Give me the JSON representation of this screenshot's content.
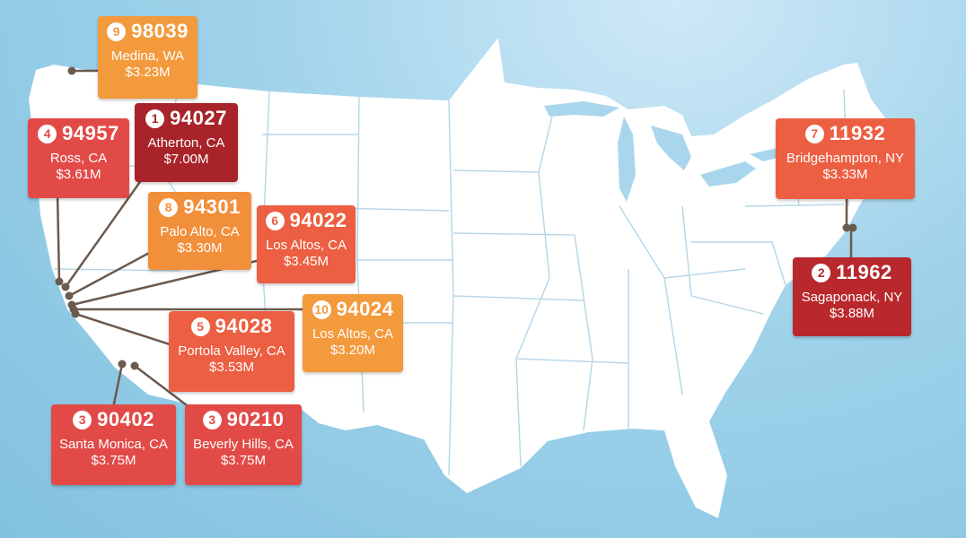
{
  "colors": {
    "water": "#8fcbe6",
    "land": "#ffffff",
    "borders": "#b5d6e8",
    "leader": "#6b5a4e",
    "rank1": "#a8242a",
    "red": "#e24a47",
    "orange": "#f28f3b"
  },
  "labels": [
    {
      "id": "medina",
      "rank": "9",
      "zip": "98039",
      "city": "Medina, WA",
      "price": "$3.23M"
    },
    {
      "id": "atherton",
      "rank": "1",
      "zip": "94027",
      "city": "Atherton, CA",
      "price": "$7.00M"
    },
    {
      "id": "ross",
      "rank": "4",
      "zip": "94957",
      "city": "Ross, CA",
      "price": "$3.61M"
    },
    {
      "id": "paloalto",
      "rank": "8",
      "zip": "94301",
      "city": "Palo Alto, CA",
      "price": "$3.30M"
    },
    {
      "id": "losaltos22",
      "rank": "6",
      "zip": "94022",
      "city": "Los Altos, CA",
      "price": "$3.45M"
    },
    {
      "id": "losaltos24",
      "rank": "10",
      "zip": "94024",
      "city": "Los Altos, CA",
      "price": "$3.20M"
    },
    {
      "id": "portola",
      "rank": "5",
      "zip": "94028",
      "city": "Portola Valley, CA",
      "price": "$3.53M"
    },
    {
      "id": "santamonica",
      "rank": "3",
      "zip": "90402",
      "city": "Santa Monica, CA",
      "price": "$3.75M"
    },
    {
      "id": "beverly",
      "rank": "3",
      "zip": "90210",
      "city": "Beverly Hills, CA",
      "price": "$3.75M"
    },
    {
      "id": "bridgehampton",
      "rank": "7",
      "zip": "11932",
      "city": "Bridgehampton, NY",
      "price": "$3.33M"
    },
    {
      "id": "sagaponack",
      "rank": "2",
      "zip": "11962",
      "city": "Sagaponack, NY",
      "price": "$3.88M"
    }
  ]
}
